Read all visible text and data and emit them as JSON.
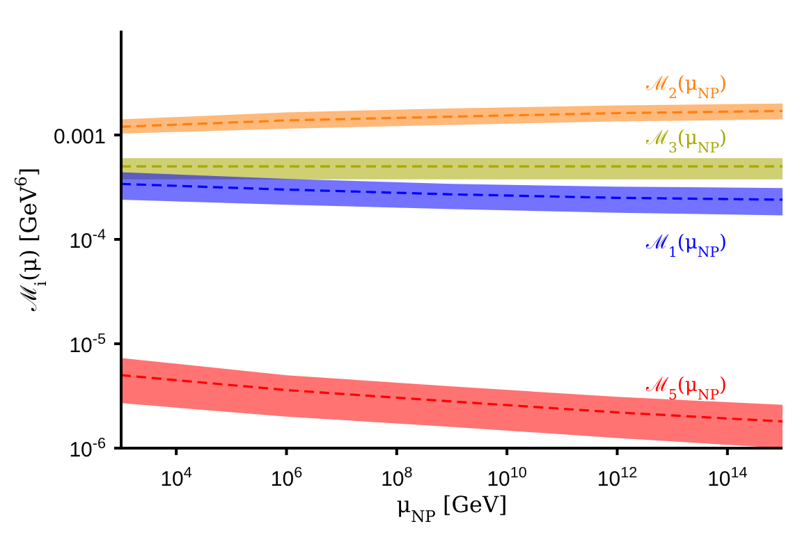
{
  "chart_data": {
    "type": "line",
    "xlabel": "μ$_{NP}$ [GeV]",
    "ylabel": "ℳ$_{i}$(μ) [GeV$^{6}$]",
    "log": "xy",
    "grid": false,
    "legend": false,
    "line_style": "dashed",
    "marker": "none",
    "x": [
      1000,
      1000000,
      1000000000,
      1000000000000,
      1000000000000000
    ],
    "xlim": [
      1000,
      1000000000000000
    ],
    "xticks": [
      {
        "value": 10000,
        "label": "10$^{4}$"
      },
      {
        "value": 1000000,
        "label": "10$^{6}$"
      },
      {
        "value": 100000000,
        "label": "10$^{8}$"
      },
      {
        "value": 10000000000,
        "label": "10$^{10}$"
      },
      {
        "value": 1000000000000,
        "label": "10$^{12}$"
      },
      {
        "value": 100000000000000,
        "label": "10$^{14}$"
      }
    ],
    "ylim": [
      1e-06,
      0.01
    ],
    "yticks": [
      {
        "value": 1e-06,
        "label": "10$^{-6}$"
      },
      {
        "value": 1e-05,
        "label": "10$^{-5}$"
      },
      {
        "value": 0.0001,
        "label": "10$^{-4}$"
      },
      0.001
    ],
    "series": [
      {
        "name": "ℳ$_{2}$(μ$_{NP}$)",
        "color": "#ff7f0e",
        "values": [
          0.0012,
          0.00138,
          0.0015,
          0.00162,
          0.0017
        ],
        "lower": [
          0.00103,
          0.00115,
          0.00125,
          0.00135,
          0.00141
        ],
        "upper": [
          0.00141,
          0.00165,
          0.0018,
          0.00192,
          0.002
        ]
      },
      {
        "name": "ℳ$_{3}$(μ$_{NP}$)",
        "color": "#a8a800",
        "values": [
          0.0005,
          0.0005,
          0.0005,
          0.0005,
          0.0005
        ],
        "lower": [
          0.000376,
          0.000376,
          0.000376,
          0.000376,
          0.000376
        ],
        "upper": [
          0.0006,
          0.0006,
          0.0006,
          0.0006,
          0.0006
        ]
      },
      {
        "name": "ℳ$_{1}$(μ$_{NP}$)",
        "color": "#0000ff",
        "values": [
          0.00034,
          0.0003,
          0.00027,
          0.00025,
          0.00024
        ],
        "lower": [
          0.00024,
          0.000215,
          0.000195,
          0.00018,
          0.00017
        ],
        "upper": [
          0.00044,
          0.00038,
          0.00034,
          0.00032,
          0.00031
        ]
      },
      {
        "name": "ℳ$_{5}$(μ$_{NP}$)",
        "color": "#ff0000",
        "values": [
          5e-06,
          3.6e-06,
          2.8e-06,
          2.2e-06,
          1.8e-06
        ],
        "lower": [
          2.7e-06,
          2e-06,
          1.6e-06,
          1.25e-06,
          1e-06
        ],
        "upper": [
          7.3e-06,
          5e-06,
          3.9e-06,
          3.1e-06,
          2.6e-06
        ]
      }
    ]
  }
}
